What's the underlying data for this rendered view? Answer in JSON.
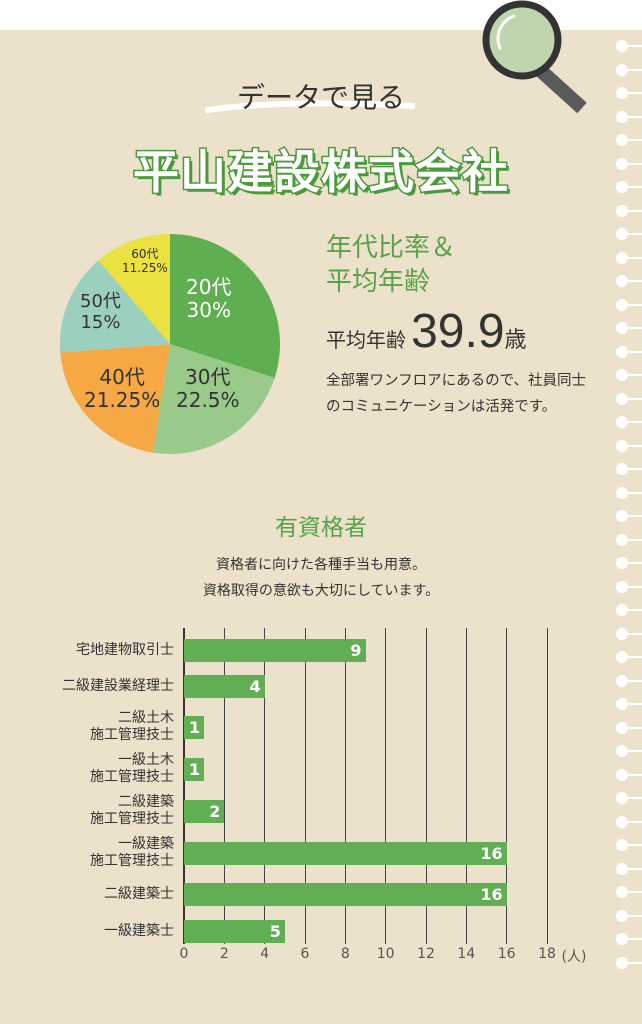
{
  "header": {
    "subtitle": "データで見る",
    "title": "平山建設株式会社"
  },
  "age_section": {
    "heading_line1": "年代比率＆",
    "heading_line2": "平均年齢",
    "avg_label": "平均年齢",
    "avg_value": "39.9",
    "avg_unit": "歳",
    "description": "全部署ワンフロアにあるので、社員同士のコミュニケーションは活発です。"
  },
  "qual_section": {
    "heading": "有資格者",
    "lead_line1": "資格者に向けた各種手当も用意。",
    "lead_line2": "資格取得の意欲も大切にしています。"
  },
  "chart_data": [
    {
      "type": "pie",
      "title": "年代比率",
      "slices": [
        {
          "label": "20代",
          "pct_label": "30%",
          "value": 30,
          "color": "#5fae4f"
        },
        {
          "label": "30代",
          "pct_label": "22.5%",
          "value": 22.5,
          "color": "#9aca8a"
        },
        {
          "label": "40代",
          "pct_label": "21.25%",
          "value": 21.25,
          "color": "#f5a844"
        },
        {
          "label": "50代",
          "pct_label": "15%",
          "value": 15,
          "color": "#9bcfbe"
        },
        {
          "label": "60代",
          "pct_label": "11.25%",
          "value": 11.25,
          "color": "#ebe141"
        }
      ]
    },
    {
      "type": "bar",
      "orientation": "horizontal",
      "title": "有資格者",
      "unit": "(人)",
      "xlim": [
        0,
        18
      ],
      "ticks": [
        "0",
        "2",
        "4",
        "6",
        "8",
        "10",
        "12",
        "14",
        "16",
        "18"
      ],
      "categories": [
        [
          "宅地建物取引士"
        ],
        [
          "二級建設業経理士"
        ],
        [
          "二級土木",
          "施工管理技士"
        ],
        [
          "一級土木",
          "施工管理技士"
        ],
        [
          "二級建築",
          "施工管理技士"
        ],
        [
          "一級建築",
          "施工管理技士"
        ],
        [
          "二級建築士"
        ],
        [
          "一級建築士"
        ]
      ],
      "values": [
        9,
        4,
        1,
        1,
        2,
        16,
        16,
        5
      ],
      "color": "#62ae55"
    }
  ]
}
